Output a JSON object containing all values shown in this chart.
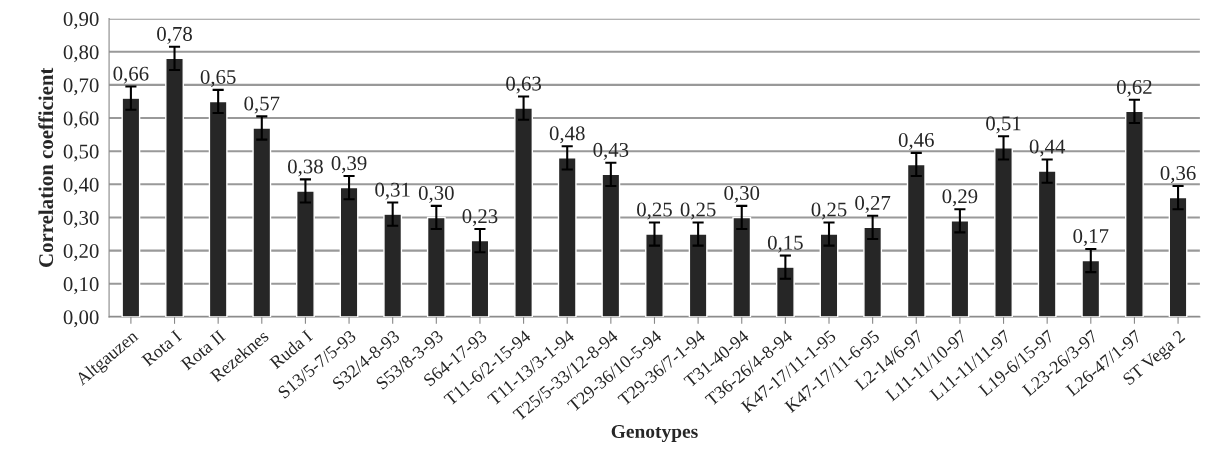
{
  "chart_data": {
    "type": "bar",
    "xlabel": "Genotypes",
    "ylabel": "Correlation coefficient",
    "categories": [
      "Altgauzen",
      "Rota I",
      "Rota II",
      "Rezeknes",
      "Ruda I",
      "S13/5-7/5-93",
      "S32/4-8-93",
      "S53/8-3-93",
      "S64-17-93",
      "T11-6/2-15-94",
      "T11-13/3-1-94",
      "T25/5-33/12-8-94",
      "T29-36/10-5-94",
      "T29-36/7-1-94",
      "T31-40-94",
      "T36-26/4-8-94",
      "K47-17/11-1-95",
      "K47-17/11-6-95",
      "L2-14/6-97",
      "L11-11/10-97",
      "L11-11/11-97",
      "L19-6/15-97",
      "L23-26/3-97",
      "L26-47/1-97",
      "ST Vega 2"
    ],
    "values": [
      0.66,
      0.78,
      0.65,
      0.57,
      0.38,
      0.39,
      0.31,
      0.3,
      0.23,
      0.63,
      0.48,
      0.43,
      0.25,
      0.25,
      0.3,
      0.15,
      0.25,
      0.27,
      0.46,
      0.29,
      0.51,
      0.44,
      0.17,
      0.62,
      0.36
    ],
    "errors": [
      0.035,
      0.035,
      0.035,
      0.035,
      0.035,
      0.035,
      0.035,
      0.035,
      0.035,
      0.035,
      0.035,
      0.035,
      0.035,
      0.035,
      0.035,
      0.035,
      0.035,
      0.035,
      0.035,
      0.035,
      0.035,
      0.035,
      0.035,
      0.035,
      0.035
    ],
    "value_labels": [
      "0,66",
      "0,78",
      "0,65",
      "0,57",
      "0,38",
      "0,39",
      "0,31",
      "0,30",
      "0,23",
      "0,63",
      "0,48",
      "0,43",
      "0,25",
      "0,25",
      "0,30",
      "0,15",
      "0,25",
      "0,27",
      "0,46",
      "0,29",
      "0,51",
      "0,44",
      "0,17",
      "0,62",
      "0,36"
    ],
    "color": "#262626",
    "ylim": [
      0,
      0.9
    ],
    "yticks": [
      {
        "value": 0,
        "label": "0,00"
      },
      {
        "value": 0.1,
        "label": "0,10"
      },
      {
        "value": 0.2,
        "label": "0,20"
      },
      {
        "value": 0.3,
        "label": "0,30"
      },
      {
        "value": 0.4,
        "label": "0,40"
      },
      {
        "value": 0.5,
        "label": "0,50"
      },
      {
        "value": 0.6,
        "label": "0,60"
      },
      {
        "value": 0.7,
        "label": "0,70"
      },
      {
        "value": 0.8,
        "label": "0,80"
      },
      {
        "value": 0.9,
        "label": "0,90"
      }
    ],
    "grid": "y",
    "legend": false
  }
}
